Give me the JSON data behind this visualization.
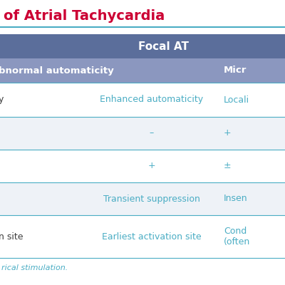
{
  "title": "of Atrial Tachycardia",
  "title_color": "#cc0033",
  "title_fontsize": 14,
  "header_bg": "#5b6e9b",
  "subheader_bg": "#8b97bf",
  "row_bg_white": "#ffffff",
  "row_bg_light": "#eef2f7",
  "divider_color": "#4aadc4",
  "text_color_dark": "#3d3d3d",
  "text_color_mid": "#4aadc4",
  "header_text": "Focal AT",
  "subheader_col0": "bnormal automaticity",
  "subheader_col2": "Micr",
  "rows": [
    [
      "y",
      "Enhanced automaticity",
      "Locali"
    ],
    [
      "",
      "–",
      "+"
    ],
    [
      "",
      "+",
      "±"
    ],
    [
      "",
      "Transient suppression",
      "Insen"
    ],
    [
      "n site",
      "Earliest activation site",
      "Cond\n(often"
    ]
  ],
  "footer_text": "rical stimulation.",
  "fig_w": 4.0,
  "fig_h": 4.0,
  "dpi": 100
}
